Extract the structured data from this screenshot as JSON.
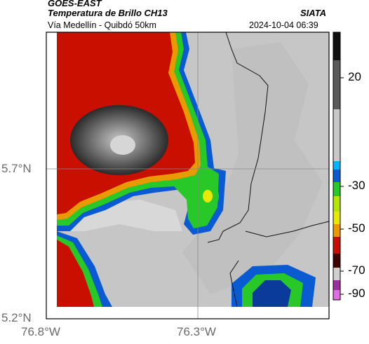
{
  "header": {
    "satellite": "GOES-EAST",
    "product": "Temperatura de Brillo CH13",
    "organization": "SIATA",
    "route": "Vía Medellín - Quibdó 50km",
    "timestamp": "2024-10-04 06:39"
  },
  "axes": {
    "lat_labels": [
      "5.7°N",
      "5.2°N"
    ],
    "lon_labels": [
      "76.8°W",
      "76.3°W"
    ]
  },
  "colorbar": {
    "tick_labels": [
      "20",
      "-30",
      "-50",
      "-70",
      "-90"
    ]
  },
  "colors": {
    "very_cold": "#2a2a2a",
    "cold": "#c80f00",
    "warm": "#c8c8c8",
    "transition_blue": "#0a5ad2",
    "transition_green": "#28c828"
  }
}
